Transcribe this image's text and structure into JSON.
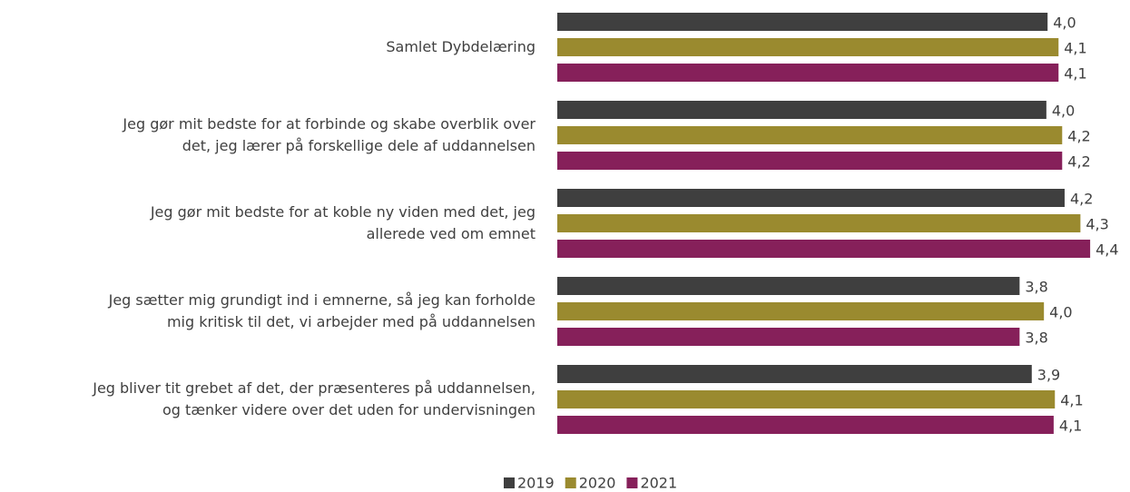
{
  "chart_data": {
    "type": "barh",
    "categories": [
      "Samlet Dybdelæring",
      "Jeg gør mit bedste for at forbinde og skabe overblik over\ndet, jeg lærer på forskellige dele af uddannelsen",
      "Jeg gør mit bedste for at koble ny viden med det, jeg\nallerede ved om emnet",
      "Jeg sætter mig grundigt ind i emnerne, så jeg kan forholde\nmig kritisk til det, vi arbejder med på uddannelsen",
      "Jeg bliver tit grebet af det, der præsenteres på uddannelsen,\nog tænker videre over det uden for undervisningen"
    ],
    "series": [
      {
        "name": "2019",
        "color": "#3f3f3f",
        "values": [
          4.03,
          4.02,
          4.17,
          3.8,
          3.9
        ],
        "value_labels": [
          "4,0",
          "4,0",
          "4,2",
          "3,8",
          "3,9"
        ]
      },
      {
        "name": "2020",
        "color": "#9a8a2f",
        "values": [
          4.12,
          4.15,
          4.3,
          4.0,
          4.09
        ],
        "value_labels": [
          "4,1",
          "4,2",
          "4,3",
          "4,0",
          "4,1"
        ]
      },
      {
        "name": "2021",
        "color": "#86205a",
        "values": [
          4.12,
          4.15,
          4.38,
          3.8,
          4.08
        ],
        "value_labels": [
          "4,1",
          "4,2",
          "4,4",
          "3,8",
          "4,1"
        ]
      }
    ],
    "xlim": [
      0,
      4.7
    ],
    "legend": "bottom"
  }
}
